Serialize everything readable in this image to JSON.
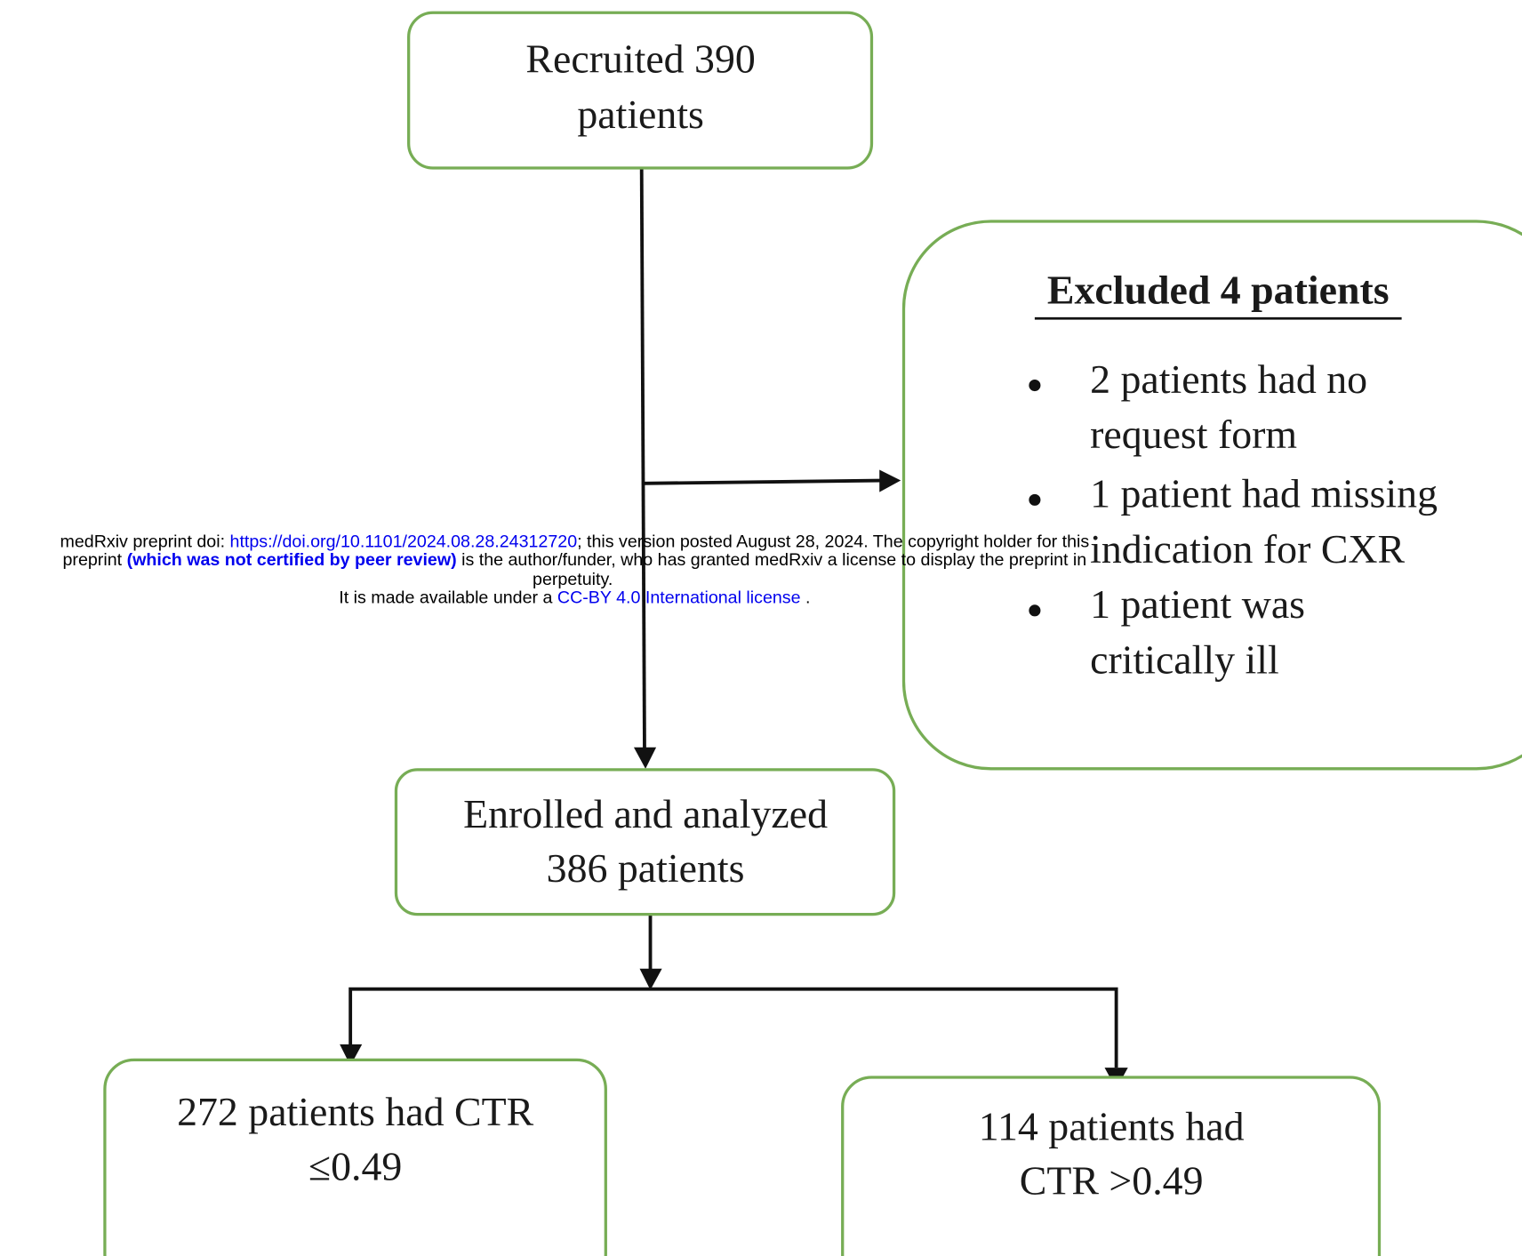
{
  "nodes": {
    "recruited": {
      "lines": [
        "Recruited 390",
        "patients"
      ]
    },
    "excluded": {
      "title": "Excluded 4 patients",
      "items": [
        {
          "lines": [
            "2 patients had no",
            "request form"
          ]
        },
        {
          "lines": [
            "1 patient had missing",
            "indication for CXR"
          ]
        },
        {
          "lines": [
            "1 patient was",
            "critically ill"
          ]
        }
      ]
    },
    "enrolled": {
      "lines": [
        "Enrolled and analyzed",
        "386 patients"
      ]
    },
    "group_low": {
      "lines": [
        "272 patients had CTR",
        "≤0.49"
      ]
    },
    "group_high": {
      "lines": [
        "114 patients had",
        "CTR >0.49"
      ]
    }
  },
  "notice": {
    "line1": {
      "before": "medRxiv preprint doi: ",
      "link": "https://doi.org/10.1101/2024.08.28.24312720",
      "after": "; this version posted August 28, 2024. The copyright holder for this"
    },
    "line2": {
      "before": "preprint ",
      "emphasis": "(which was not certified by peer review)",
      "after": " is the author/funder, who has granted medRxiv a license to display the preprint in"
    },
    "line3": "perpetuity.",
    "line4": {
      "before": "It is made available under a ",
      "link": "CC-BY 4.0 International license",
      "after": " ."
    }
  }
}
